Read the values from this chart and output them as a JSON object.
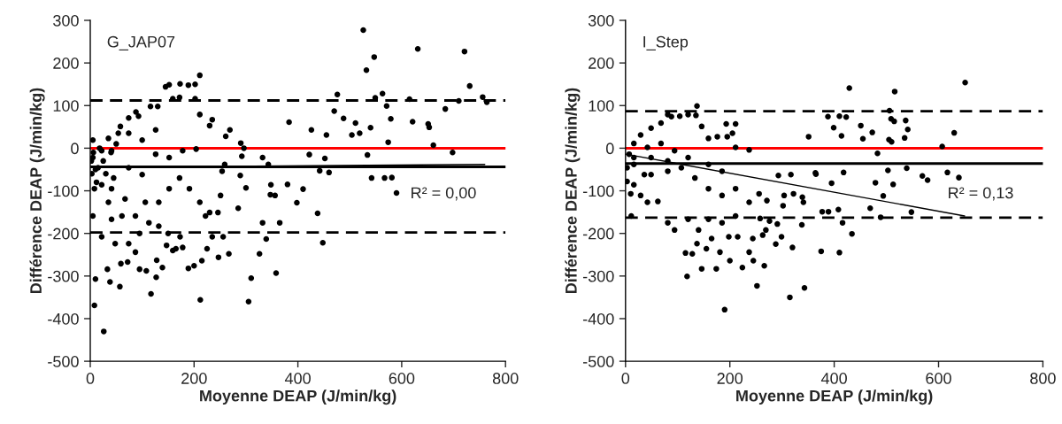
{
  "chart_data": [
    {
      "type": "scatter",
      "title": "G_JAP07",
      "xlabel": "Moyenne DEAP (J/min/kg)",
      "ylabel": "Différence DEAP (J/min/kg)",
      "xlim": [
        0,
        800
      ],
      "xticks": [
        0,
        200,
        400,
        600,
        800
      ],
      "ylim": [
        -500,
        300
      ],
      "yticks": [
        -500,
        -400,
        -300,
        -200,
        -100,
        0,
        100,
        200,
        300
      ],
      "grid": false,
      "series": [
        {
          "marker": "circle",
          "color": "#000000",
          "x": [
            526,
            721,
            631,
            547,
            532,
            731,
            756,
            764,
            710,
            684,
            549,
            563,
            476,
            470,
            488,
            511,
            519,
            504,
            540,
            579,
            574,
            571,
            651,
            653,
            661,
            698,
            590,
            542,
            567,
            581,
            534,
            621,
            615,
            383,
            426,
            455,
            422,
            452,
            460,
            442,
            448,
            438,
            398,
            410,
            380,
            365,
            358,
            305,
            310,
            326,
            339,
            332,
            347,
            356,
            348,
            343,
            332,
            296,
            290,
            292,
            289,
            300,
            285,
            267,
            247,
            212,
            200,
            215,
            225,
            235,
            256,
            222,
            246,
            251,
            254,
            259,
            269,
            261,
            235,
            230,
            211,
            202,
            211,
            189,
            202,
            173,
            172,
            159,
            145,
            152,
            130,
            116,
            88,
            74,
            58,
            35,
            22,
            15,
            8,
            5,
            8,
            10,
            26,
            33,
            57,
            38,
            59,
            72,
            87,
            95,
            108,
            117,
            127,
            128,
            139,
            147,
            159,
            165,
            178,
            189,
            173,
            150,
            132,
            113,
            95,
            74,
            48,
            22,
            41,
            61,
            87,
            106,
            132,
            152,
            172,
            191,
            211,
            230,
            67,
            41,
            74,
            100,
            126,
            152,
            178,
            204,
            100,
            126,
            74,
            93,
            54,
            41,
            5,
            5,
            22,
            35,
            2,
            3,
            6,
            10,
            12,
            18,
            25,
            30,
            40,
            45,
            50
          ],
          "values": [
            277,
            227,
            233,
            214,
            183,
            146,
            120,
            108,
            111,
            92,
            118,
            128,
            126,
            87,
            70,
            59,
            35,
            31,
            48,
            69,
            14,
            99,
            57,
            49,
            7,
            -10,
            -105,
            -70,
            -70,
            -69,
            -16,
            62,
            115,
            61,
            43,
            31,
            -15,
            -24,
            -57,
            -53,
            -222,
            -153,
            -128,
            -96,
            -85,
            -175,
            -293,
            -360,
            -305,
            -248,
            -213,
            -175,
            -109,
            -111,
            -86,
            -38,
            -22,
            0,
            12,
            -19,
            -64,
            -93,
            -141,
            -248,
            -256,
            -356,
            -276,
            -264,
            -236,
            -208,
            -208,
            -159,
            -151,
            -111,
            -54,
            -38,
            43,
            28,
            67,
            53,
            79,
            116,
            171,
            148,
            150,
            151,
            119,
            116,
            144,
            149,
            98,
            98,
            85,
            71,
            51,
            23,
            -6,
            -46,
            -95,
            -159,
            -369,
            -307,
            -430,
            -284,
            -325,
            -314,
            -271,
            -267,
            -244,
            -284,
            -288,
            -342,
            -303,
            -263,
            -280,
            -228,
            -240,
            -236,
            -233,
            -282,
            -208,
            -200,
            -183,
            -175,
            -200,
            -224,
            -224,
            -208,
            -167,
            -159,
            -159,
            -127,
            -127,
            -95,
            -70,
            -95,
            -127,
            -151,
            -119,
            -95,
            -46,
            -62,
            -14,
            -22,
            -6,
            -2,
            19,
            43,
            35,
            75,
            35,
            -6,
            -22,
            19,
            -86,
            -127,
            -30,
            -60,
            -10,
            -50,
            -80,
            0,
            -30,
            -60,
            -10,
            -70,
            10
          ]
        },
        {
          "type": "line",
          "color": "#000000",
          "x": [
            0,
            760
          ],
          "values": [
            -45,
            -38
          ]
        }
      ],
      "ref_lines": [
        {
          "axis": "y",
          "value": 0,
          "color": "#ff0000",
          "line_style": "solid"
        },
        {
          "axis": "y",
          "value": -44,
          "color": "#000000",
          "line_style": "solid"
        },
        {
          "axis": "y",
          "value": 112,
          "color": "#000000",
          "line_style": "dashed"
        },
        {
          "axis": "y",
          "value": -198,
          "color": "#000000",
          "line_style": "dashed"
        }
      ],
      "annotations": [
        "R² = 0,00"
      ]
    },
    {
      "type": "scatter",
      "title": "I_Step",
      "xlabel": "Moyenne DEAP (J/min/kg)",
      "ylabel": "Différence DEAP (J/min/kg)",
      "xlim": [
        0,
        800
      ],
      "xticks": [
        0,
        200,
        400,
        600,
        800
      ],
      "ylim": [
        -500,
        300
      ],
      "yticks": [
        -500,
        -400,
        -300,
        -200,
        -100,
        0,
        100,
        200,
        300
      ],
      "grid": false,
      "series": [
        {
          "marker": "circle",
          "color": "#000000",
          "x": [
            651,
            516,
            429,
            388,
            410,
            423,
            399,
            414,
            351,
            451,
            455,
            473,
            506,
            509,
            515,
            537,
            541,
            535,
            505,
            510,
            630,
            607,
            483,
            503,
            513,
            539,
            569,
            579,
            617,
            639,
            494,
            548,
            469,
            489,
            479,
            418,
            395,
            364,
            365,
            389,
            377,
            408,
            416,
            434,
            410,
            375,
            338,
            343,
            315,
            320,
            299,
            288,
            291,
            269,
            263,
            266,
            245,
            252,
            224,
            200,
            190,
            174,
            146,
            118,
            115,
            128,
            137,
            155,
            165,
            181,
            198,
            215,
            237,
            244,
            258,
            276,
            302,
            304,
            322,
            339,
            341,
            293,
            317,
            271,
            256,
            237,
            211,
            185,
            159,
            140,
            120,
            94,
            81,
            62,
            42,
            29,
            11,
            10,
            16,
            49,
            81,
            107,
            133,
            159,
            185,
            211,
            237,
            211,
            205,
            211,
            193,
            195,
            176,
            159,
            146,
            137,
            135,
            120,
            104,
            88,
            81,
            68,
            49,
            29,
            16,
            7,
            3,
            16,
            42,
            68,
            94,
            120,
            159,
            185,
            81,
            49,
            16,
            36,
            3
          ],
          "values": [
            154,
            133,
            141,
            74,
            75,
            73,
            48,
            29,
            27,
            53,
            22,
            37,
            88,
            69,
            63,
            65,
            44,
            24,
            20,
            15,
            36,
            4,
            -12,
            -52,
            -85,
            -47,
            -65,
            -75,
            -57,
            -69,
            -112,
            -150,
            -141,
            -162,
            -81,
            -57,
            -82,
            -58,
            -61,
            -149,
            -149,
            -144,
            -175,
            -201,
            -245,
            -242,
            -180,
            -328,
            -350,
            -233,
            -208,
            -225,
            -178,
            -192,
            -204,
            -276,
            -264,
            -323,
            -280,
            -264,
            -379,
            -283,
            -283,
            -301,
            -246,
            -248,
            -224,
            -236,
            -212,
            -244,
            -208,
            -208,
            -244,
            -212,
            -165,
            -171,
            -135,
            -111,
            -107,
            -115,
            -127,
            -64,
            -62,
            -123,
            -107,
            -127,
            -159,
            -175,
            -167,
            -192,
            -167,
            -192,
            -175,
            -125,
            -127,
            -111,
            -159,
            -107,
            -86,
            -62,
            -54,
            -46,
            -70,
            -95,
            -111,
            -95,
            -4,
            2,
            35,
            57,
            57,
            27,
            27,
            23,
            51,
            99,
            77,
            79,
            75,
            74,
            79,
            59,
            47,
            31,
            11,
            -14,
            -46,
            -38,
            2,
            11,
            -6,
            -22,
            -38,
            -54,
            -30,
            -22,
            -22,
            -62,
            -78
          ]
        },
        {
          "type": "line",
          "color": "#000000",
          "x": [
            0,
            650
          ],
          "values": [
            -14,
            -159
          ]
        }
      ],
      "ref_lines": [
        {
          "axis": "y",
          "value": 0,
          "color": "#ff0000",
          "line_style": "solid"
        },
        {
          "axis": "y",
          "value": -36,
          "color": "#000000",
          "line_style": "solid"
        },
        {
          "axis": "y",
          "value": 87,
          "color": "#000000",
          "line_style": "dashed"
        },
        {
          "axis": "y",
          "value": -163,
          "color": "#000000",
          "line_style": "dashed"
        }
      ],
      "annotations": [
        "R² = 0,13"
      ]
    }
  ]
}
